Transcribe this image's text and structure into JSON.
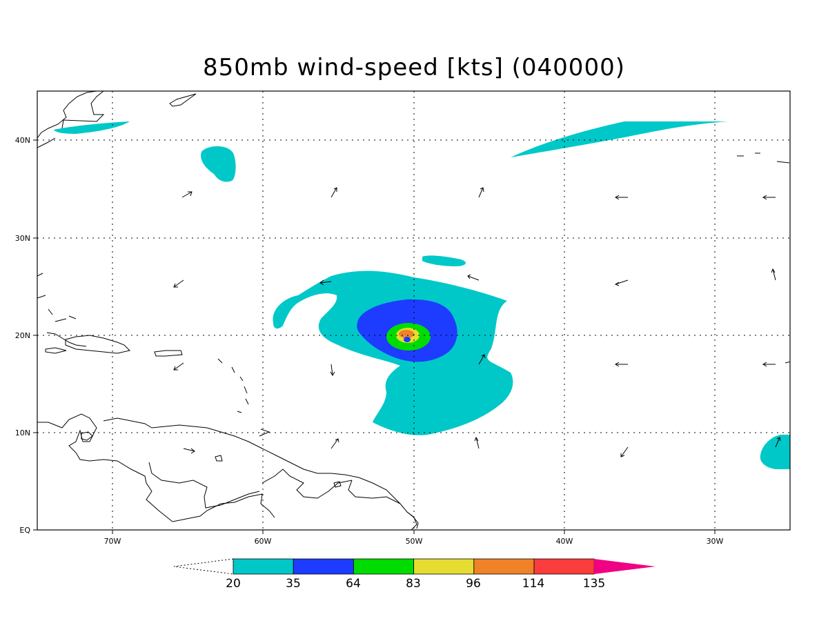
{
  "title": "850mb wind-speed [kts] (040000)",
  "axes": {
    "lon_labels": [
      "70W",
      "60W",
      "50W",
      "40W",
      "30W"
    ],
    "lat_labels": [
      "EQ",
      "10N",
      "20N",
      "30N",
      "40N"
    ]
  },
  "colorbar": {
    "levels": [
      "20",
      "35",
      "64",
      "83",
      "96",
      "114",
      "135"
    ],
    "colors": [
      "#00c8c8",
      "#1e3cff",
      "#00dc00",
      "#e6dc32",
      "#f08228",
      "#fa3c3c",
      "#f00082"
    ]
  },
  "domain": {
    "lon_range": [
      -75,
      -25
    ],
    "lat_range": [
      0,
      45
    ],
    "grid_spacing_deg": 10
  }
}
